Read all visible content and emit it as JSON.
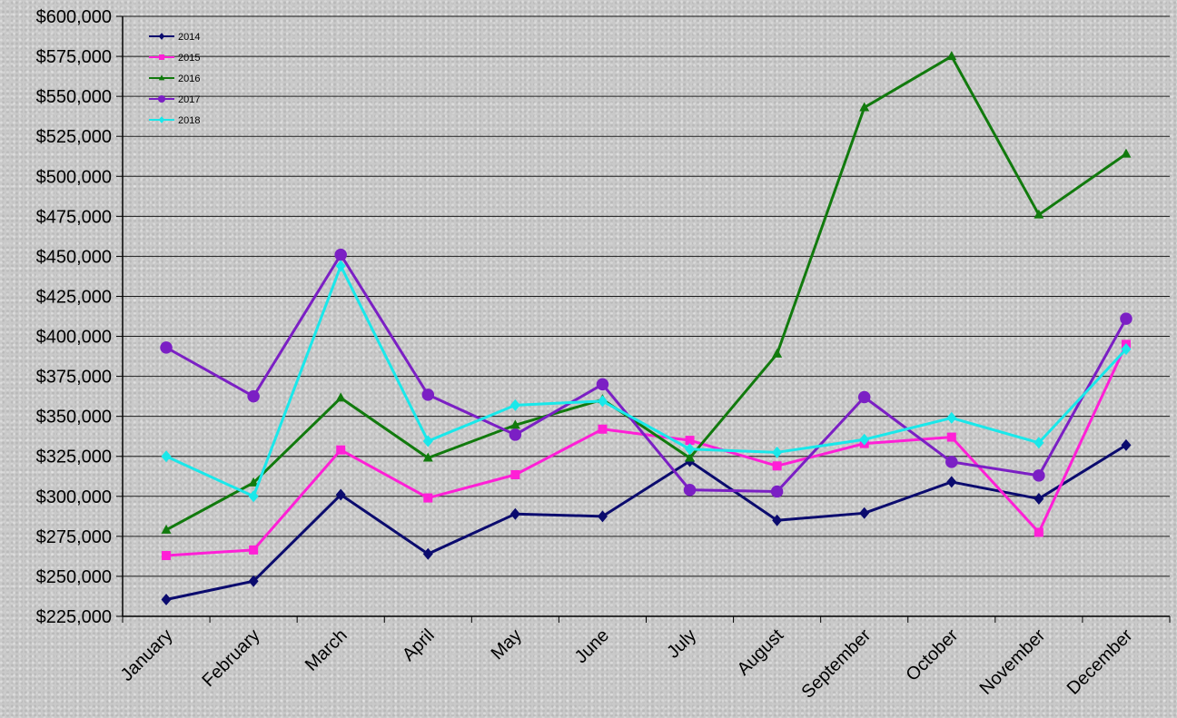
{
  "chart_data": {
    "type": "line",
    "title": "",
    "xlabel": "",
    "ylabel": "",
    "ylim": [
      225000,
      600000
    ],
    "ytick_step": 25000,
    "ytick_labels": [
      "$225,000",
      "$250,000",
      "$275,000",
      "$300,000",
      "$325,000",
      "$350,000",
      "$375,000",
      "$400,000",
      "$425,000",
      "$450,000",
      "$475,000",
      "$500,000",
      "$525,000",
      "$550,000",
      "$575,000",
      "$600,000"
    ],
    "grid": "horizontal",
    "legend_position": "top-left",
    "categories": [
      "January",
      "February",
      "March",
      "April",
      "May",
      "June",
      "July",
      "August",
      "September",
      "October",
      "November",
      "December"
    ],
    "series": [
      {
        "name": "2014",
        "color": "#0b0b6e",
        "marker": "diamond",
        "values": [
          235500,
          247000,
          301000,
          264000,
          289000,
          287500,
          322000,
          285000,
          289500,
          309000,
          298500,
          332000
        ]
      },
      {
        "name": "2015",
        "color": "#ff1fd6",
        "marker": "square",
        "values": [
          263000,
          266500,
          329000,
          299000,
          313500,
          342000,
          335000,
          319000,
          333000,
          337000,
          277500,
          395000
        ]
      },
      {
        "name": "2016",
        "color": "#117a0d",
        "marker": "triangle",
        "values": [
          279000,
          308500,
          361500,
          324000,
          344500,
          360500,
          324000,
          389000,
          543000,
          575000,
          476000,
          514000
        ]
      },
      {
        "name": "2017",
        "color": "#7b1fc4",
        "marker": "circle",
        "values": [
          393000,
          362500,
          451000,
          363500,
          338500,
          370000,
          304000,
          303000,
          362000,
          321500,
          313000,
          411000
        ]
      },
      {
        "name": "2018",
        "color": "#19e8ea",
        "marker": "diamond",
        "values": [
          325000,
          300000,
          444000,
          334500,
          357000,
          359500,
          329500,
          327500,
          335500,
          349000,
          333500,
          392000
        ]
      }
    ]
  }
}
